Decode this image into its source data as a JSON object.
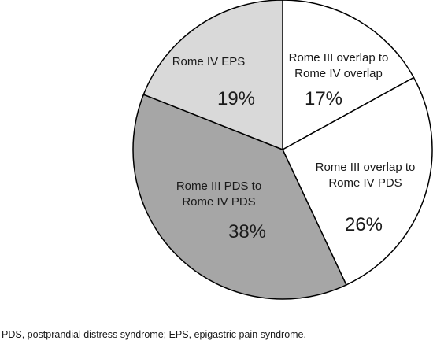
{
  "chart_data": {
    "type": "pie",
    "slices": [
      {
        "label_lines": [
          "Rome III overlap to",
          "Rome IV overlap"
        ],
        "percent_text": "17%",
        "value": 17,
        "color": "#ffffff"
      },
      {
        "label_lines": [
          "Rome III overlap to",
          "Rome IV PDS"
        ],
        "percent_text": "26%",
        "value": 26,
        "color": "#ffffff"
      },
      {
        "label_lines": [
          "Rome III PDS to",
          "Rome IV PDS"
        ],
        "percent_text": "38%",
        "value": 38,
        "color": "#a6a6a6"
      },
      {
        "label_lines": [
          "Rome IV EPS"
        ],
        "percent_text": "19%",
        "value": 19,
        "color": "#d9d9d9"
      }
    ],
    "start": "12 o'clock",
    "direction": "clockwise",
    "stroke_color": "#000000"
  },
  "footnote": "PDS, postprandial distress syndrome; EPS, epigastric pain syndrome."
}
